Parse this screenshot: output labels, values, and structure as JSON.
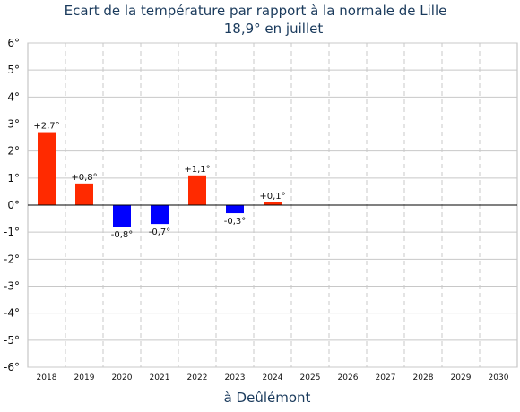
{
  "chart_data": {
    "type": "bar",
    "title": "Ecart de la température par rapport à la normale de Lille",
    "subtitle": "18,9° en juillet",
    "xlabel": "à Deûlémont",
    "ylabel": "",
    "ylim": [
      -6,
      6
    ],
    "yticks": [
      "6°",
      "5°",
      "4°",
      "3°",
      "2°",
      "1°",
      "0°",
      "-1°",
      "-2°",
      "-3°",
      "-4°",
      "-5°",
      "-6°"
    ],
    "categories": [
      "2018",
      "2019",
      "2020",
      "2021",
      "2022",
      "2023",
      "2024",
      "2025",
      "2026",
      "2027",
      "2028",
      "2029",
      "2030"
    ],
    "values": [
      2.7,
      0.8,
      -0.8,
      -0.7,
      1.1,
      -0.3,
      0.1,
      null,
      null,
      null,
      null,
      null,
      null
    ],
    "data_labels": [
      "+2,7°",
      "+0,8°",
      "-0,8°",
      "-0,7°",
      "+1,1°",
      "-0,3°",
      "+0,1°",
      "",
      "",
      "",
      "",
      "",
      ""
    ],
    "grid": true,
    "colors": {
      "positive": "#ff2a00",
      "negative": "#0000ff",
      "grid": "#c8c8c8",
      "zero_line": "#000000",
      "title": "#1a3a5c"
    }
  }
}
